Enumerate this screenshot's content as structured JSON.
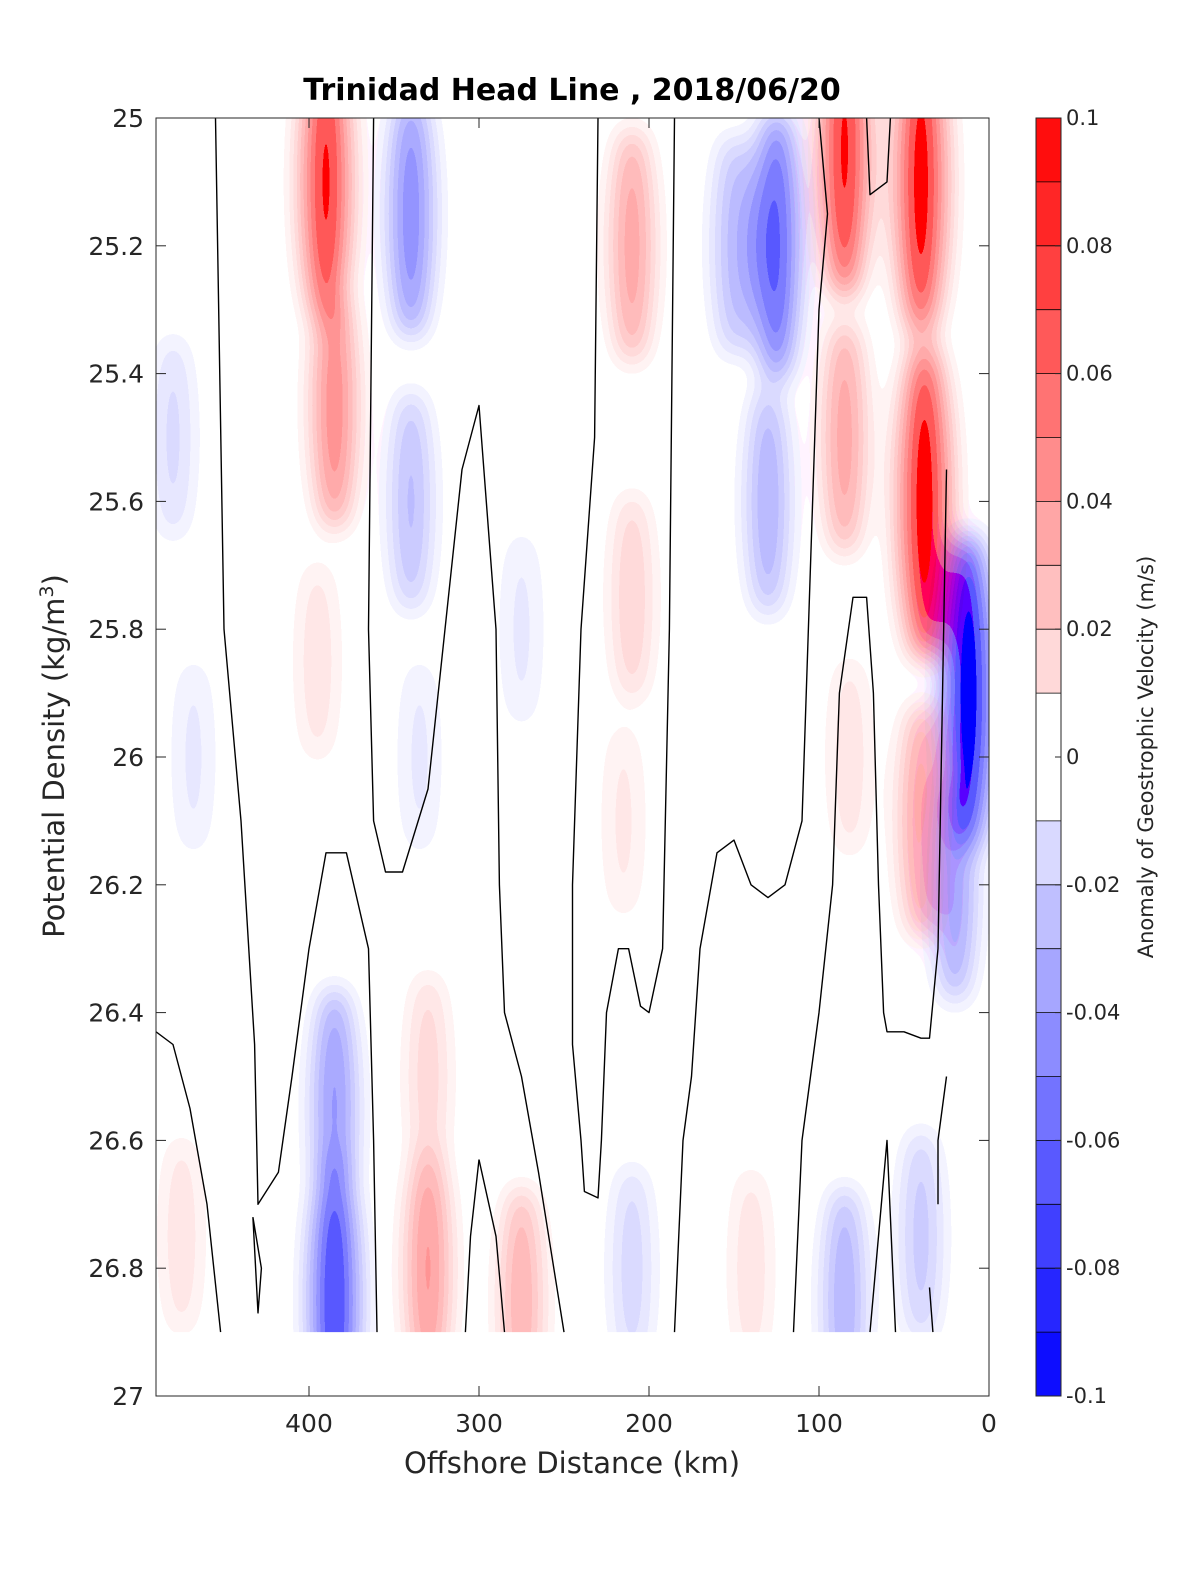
{
  "chart_data": {
    "type": "contourf",
    "title": "Trinidad Head Line , 2018/06/20",
    "xlabel": "Offshore Distance (km)",
    "ylabel_main": "Potential Density (kg/m",
    "ylabel_sup": "3",
    "ylabel_close": ")",
    "colorbar_label": "Anomaly of Geostrophic Velocity (m/s)",
    "xlim": [
      490,
      0
    ],
    "x_reversed": true,
    "ylim": [
      25,
      27
    ],
    "y_reversed": true,
    "x_ticks": [
      400,
      300,
      200,
      100,
      0
    ],
    "x_tick_labels": [
      "400",
      "300",
      "200",
      "100",
      "0"
    ],
    "y_ticks": [
      25,
      25.2,
      25.4,
      25.6,
      25.8,
      26,
      26.2,
      26.4,
      26.6,
      26.8,
      27
    ],
    "y_tick_labels": [
      "25",
      "25.2",
      "25.4",
      "25.6",
      "25.8",
      "26",
      "26.2",
      "26.4",
      "26.6",
      "26.8",
      "27"
    ],
    "data_bottom_density": 26.9,
    "colorbar": {
      "limits": [
        -0.1,
        0.1
      ],
      "tick_values": [
        0.1,
        0.08,
        0.06,
        0.04,
        0.02,
        0,
        -0.02,
        -0.04,
        -0.06,
        -0.08,
        -0.1
      ],
      "tick_labels": [
        "0.1",
        "0.08",
        "0.06",
        "0.04",
        "0.02",
        "0",
        "-0.02",
        "-0.04",
        "-0.06",
        "-0.08",
        "-0.1"
      ],
      "levels": [
        -0.1,
        -0.09,
        -0.08,
        -0.07,
        -0.06,
        -0.05,
        -0.04,
        -0.03,
        -0.02,
        -0.01,
        0.01,
        0.02,
        0.03,
        0.04,
        0.05,
        0.06,
        0.07,
        0.08,
        0.09,
        0.1
      ],
      "negative_color": "#0000ff",
      "positive_color": "#ff0000",
      "zero_color": "#ffffff"
    },
    "zero_contour_color": "#000000",
    "cores": [
      {
        "x": 480,
        "y": 25.5,
        "value": -0.018
      },
      {
        "x": 468,
        "y": 26.0,
        "value": -0.012
      },
      {
        "x": 390,
        "y": 25.1,
        "value": 0.085
      },
      {
        "x": 385,
        "y": 25.45,
        "value": 0.05
      },
      {
        "x": 395,
        "y": 25.85,
        "value": 0.015
      },
      {
        "x": 340,
        "y": 25.15,
        "value": -0.05
      },
      {
        "x": 340,
        "y": 25.6,
        "value": -0.03
      },
      {
        "x": 335,
        "y": 26.0,
        "value": -0.012
      },
      {
        "x": 275,
        "y": 25.8,
        "value": -0.012
      },
      {
        "x": 210,
        "y": 25.2,
        "value": 0.04
      },
      {
        "x": 210,
        "y": 25.75,
        "value": 0.022
      },
      {
        "x": 215,
        "y": 26.1,
        "value": 0.012
      },
      {
        "x": 150,
        "y": 25.2,
        "value": -0.03
      },
      {
        "x": 125,
        "y": 25.2,
        "value": -0.065
      },
      {
        "x": 130,
        "y": 25.6,
        "value": -0.035
      },
      {
        "x": 85,
        "y": 25.05,
        "value": 0.085
      },
      {
        "x": 85,
        "y": 25.5,
        "value": 0.04
      },
      {
        "x": 82,
        "y": 26.0,
        "value": 0.015
      },
      {
        "x": 40,
        "y": 25.1,
        "value": 0.095
      },
      {
        "x": 38,
        "y": 25.6,
        "value": 0.1
      },
      {
        "x": 40,
        "y": 26.1,
        "value": 0.04
      },
      {
        "x": 12,
        "y": 25.9,
        "value": -0.1
      },
      {
        "x": 20,
        "y": 26.2,
        "value": -0.04
      },
      {
        "x": 475,
        "y": 26.75,
        "value": 0.015
      },
      {
        "x": 385,
        "y": 26.85,
        "value": -0.08
      },
      {
        "x": 385,
        "y": 26.55,
        "value": -0.045
      },
      {
        "x": 330,
        "y": 26.8,
        "value": 0.045
      },
      {
        "x": 330,
        "y": 26.5,
        "value": 0.02
      },
      {
        "x": 275,
        "y": 26.85,
        "value": 0.035
      },
      {
        "x": 210,
        "y": 26.8,
        "value": -0.02
      },
      {
        "x": 140,
        "y": 26.8,
        "value": 0.015
      },
      {
        "x": 85,
        "y": 26.85,
        "value": -0.035
      },
      {
        "x": 40,
        "y": 26.75,
        "value": -0.025
      }
    ],
    "zero_contours": [
      [
        [
          455,
          25.0
        ],
        [
          450,
          25.8
        ],
        [
          440,
          26.1
        ],
        [
          432,
          26.45
        ],
        [
          430,
          26.7
        ],
        [
          418,
          26.65
        ],
        [
          410,
          26.5
        ],
        [
          400,
          26.3
        ],
        [
          390,
          26.15
        ],
        [
          378,
          26.15
        ],
        [
          365,
          26.3
        ],
        [
          362,
          26.6
        ],
        [
          360,
          26.9
        ]
      ],
      [
        [
          490,
          26.43
        ],
        [
          480,
          26.45
        ],
        [
          470,
          26.55
        ],
        [
          460,
          26.7
        ],
        [
          452,
          26.9
        ]
      ],
      [
        [
          433,
          26.72
        ],
        [
          428,
          26.8
        ],
        [
          430,
          26.87
        ],
        [
          433,
          26.72
        ]
      ],
      [
        [
          362,
          25.0
        ],
        [
          365,
          25.8
        ],
        [
          362,
          26.1
        ],
        [
          355,
          26.18
        ],
        [
          345,
          26.18
        ],
        [
          330,
          26.05
        ],
        [
          310,
          25.55
        ],
        [
          300,
          25.45
        ],
        [
          290,
          25.8
        ],
        [
          288,
          26.2
        ],
        [
          285,
          26.4
        ],
        [
          275,
          26.5
        ],
        [
          265,
          26.65
        ],
        [
          250,
          26.9
        ]
      ],
      [
        [
          300,
          26.63
        ],
        [
          305,
          26.75
        ],
        [
          308,
          26.9
        ]
      ],
      [
        [
          300,
          26.63
        ],
        [
          290,
          26.75
        ],
        [
          285,
          26.9
        ]
      ],
      [
        [
          230,
          25.0
        ],
        [
          232,
          25.5
        ],
        [
          240,
          25.8
        ],
        [
          245,
          26.2
        ],
        [
          245,
          26.45
        ],
        [
          240,
          26.6
        ],
        [
          238,
          26.68
        ],
        [
          230,
          26.69
        ],
        [
          228,
          26.6
        ],
        [
          225,
          26.4
        ],
        [
          218,
          26.3
        ],
        [
          212,
          26.3
        ],
        [
          205,
          26.39
        ],
        [
          200,
          26.4
        ],
        [
          192,
          26.3
        ],
        [
          188,
          25.8
        ],
        [
          185,
          25.0
        ]
      ],
      [
        [
          185,
          26.9
        ],
        [
          180,
          26.6
        ],
        [
          175,
          26.5
        ],
        [
          170,
          26.3
        ],
        [
          160,
          26.15
        ],
        [
          150,
          26.13
        ],
        [
          140,
          26.2
        ],
        [
          130,
          26.22
        ],
        [
          120,
          26.2
        ],
        [
          110,
          26.1
        ],
        [
          105,
          25.7
        ],
        [
          100,
          25.3
        ],
        [
          95,
          25.15
        ],
        [
          100,
          25.0
        ]
      ],
      [
        [
          115,
          26.9
        ],
        [
          110,
          26.6
        ],
        [
          105,
          26.5
        ],
        [
          100,
          26.4
        ],
        [
          92,
          26.2
        ],
        [
          88,
          25.9
        ],
        [
          80,
          25.75
        ],
        [
          72,
          25.75
        ],
        [
          68,
          25.9
        ],
        [
          65,
          26.2
        ],
        [
          62,
          26.4
        ],
        [
          60,
          26.43
        ],
        [
          50,
          26.43
        ],
        [
          40,
          26.44
        ],
        [
          35,
          26.44
        ],
        [
          30,
          26.3
        ],
        [
          28,
          26.0
        ],
        [
          25,
          25.55
        ]
      ],
      [
        [
          72,
          25.0
        ],
        [
          70,
          25.12
        ],
        [
          60,
          25.1
        ],
        [
          58,
          25.0
        ]
      ],
      [
        [
          70,
          26.9
        ],
        [
          65,
          26.75
        ],
        [
          60,
          26.6
        ],
        [
          55,
          26.9
        ]
      ],
      [
        [
          30,
          26.7
        ],
        [
          30,
          26.6
        ],
        [
          25,
          26.5
        ]
      ],
      [
        [
          33,
          26.9
        ],
        [
          35,
          26.83
        ]
      ]
    ]
  }
}
